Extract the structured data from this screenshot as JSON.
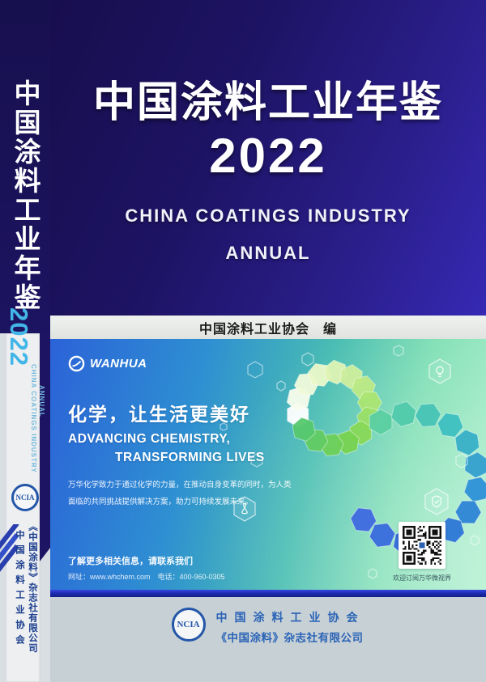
{
  "spine": {
    "title": "中国涂料工业年鉴",
    "year": "2022",
    "subtitle_en_line1": "CHINA COATINGS INDUSTRY",
    "subtitle_en_line2": "ANNUAL",
    "logo_text": "NCIA",
    "org_vertical": "中国涂料工业协会",
    "publisher_vertical": "《中国涂料》杂志社有限公司"
  },
  "cover": {
    "title": "中国涂料工业年鉴",
    "year": "2022",
    "subtitle_line1": "CHINA COATINGS INDUSTRY",
    "subtitle_line2": "ANNUAL",
    "editor_credit": "中国涂料工业协会　编"
  },
  "banner": {
    "brand": "WANHUA",
    "slogan_cn": "化学，让生活更美好",
    "slogan_en_line1": "ADVANCING CHEMISTRY,",
    "slogan_en_line2": "TRANSFORMING LIVES",
    "body_line1": "万华化学致力于通过化学的力量，在推动自身变革的同时，为人类",
    "body_line2": "面临的共同挑战提供解决方案，助力可持续发展未来。",
    "contact_heading": "了解更多相关信息，请联系我们",
    "contact_details": "网址：www.whchem.com　电话：400-960-0305",
    "qr_caption": "欢迎订阅万华微视界"
  },
  "footer": {
    "logo_text": "NCIA",
    "org": "中国涂料工业协会",
    "publisher": "《中国涂料》杂志社有限公司"
  },
  "colors": {
    "cover_navy": "#1d1363",
    "cover_blue": "#3629b4",
    "title_white": "#ffffff",
    "spine_year_cyan": "#43b6e8",
    "banner_blue_left": "#2b63d8",
    "banner_green_right": "#abefcb",
    "bottom_bar_blue": "#1d2bb4",
    "footer_bg": "#c7d0d5",
    "logo_blue": "#2b64b6"
  }
}
